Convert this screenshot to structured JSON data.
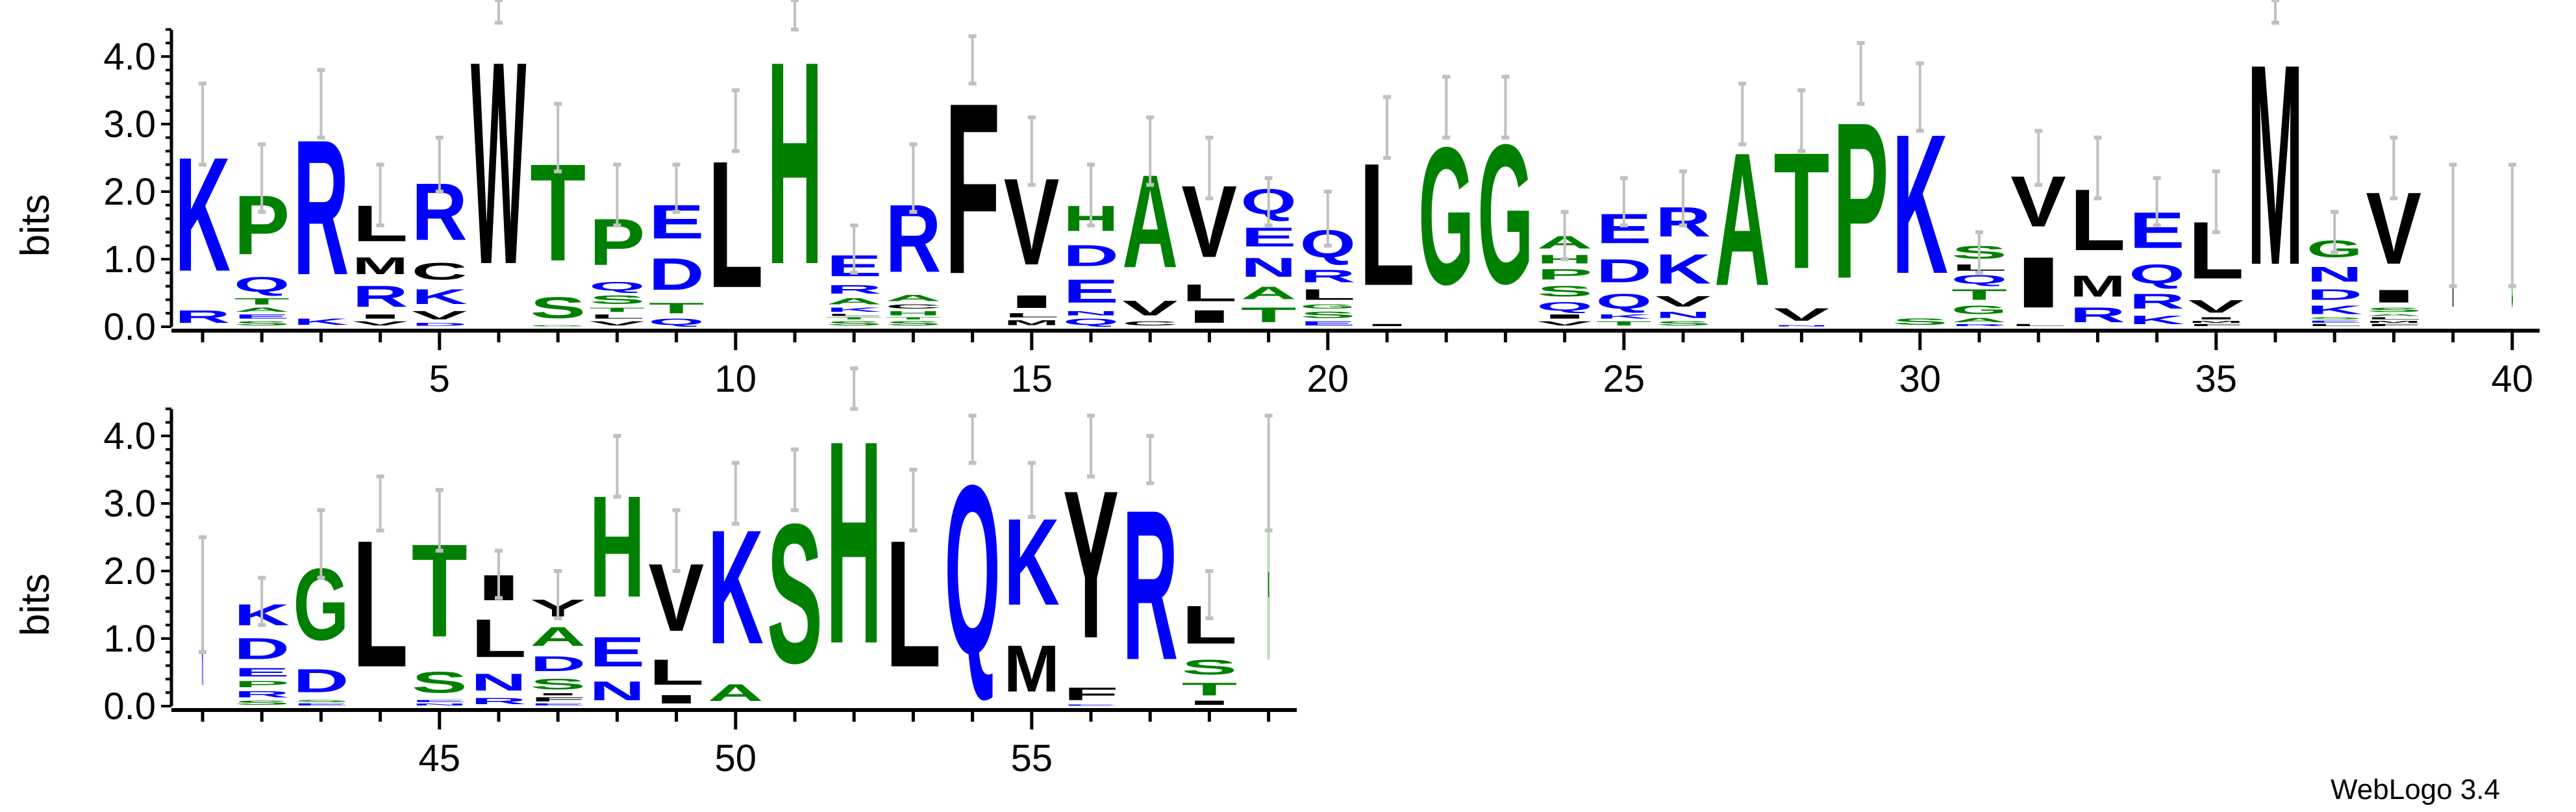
{
  "chart_data": {
    "type": "sequence-logo",
    "ylabel": "bits",
    "ylim": [
      0,
      4.4
    ],
    "yticks": [
      "0.0",
      "1.0",
      "2.0",
      "3.0",
      "4.0"
    ],
    "xticks_row1": [
      "5",
      "10",
      "15",
      "20",
      "25",
      "30",
      "35",
      "40"
    ],
    "xticks_row2": [
      "45",
      "50",
      "55"
    ],
    "rows": [
      [
        1,
        40
      ],
      [
        41,
        59
      ]
    ],
    "colors": {
      "blue": "#0000FF",
      "green": "#008000",
      "black": "#000000",
      "errorbar": "#C0C0C0"
    },
    "letter_colors": {
      "K": "blue",
      "R": "blue",
      "H": "green",
      "D": "blue",
      "E": "blue",
      "N": "blue",
      "Q": "blue",
      "S": "green",
      "T": "green",
      "G": "green",
      "P": "green",
      "A": "green",
      "Y": "black",
      "C": "black",
      "W": "black",
      "F": "black",
      "L": "black",
      "I": "black",
      "M": "black",
      "V": "black"
    },
    "positions": [
      {
        "pos": 1,
        "stack": [
          [
            "R",
            0.3
          ],
          [
            "K",
            2.7
          ]
        ],
        "err": [
          2.4,
          3.6
        ]
      },
      {
        "pos": 2,
        "stack": [
          [
            "S",
            0.1
          ],
          [
            "E",
            0.1
          ],
          [
            "A",
            0.1
          ],
          [
            "T",
            0.15
          ],
          [
            "Q",
            0.35
          ],
          [
            "P",
            1.4
          ]
        ],
        "err": [
          1.7,
          2.7
        ]
      },
      {
        "pos": 3,
        "stack": [
          [
            "K",
            0.15
          ],
          [
            "R",
            3.2
          ]
        ],
        "err": [
          2.8,
          3.8
        ]
      },
      {
        "pos": 4,
        "stack": [
          [
            "V",
            0.1
          ],
          [
            "I",
            0.1
          ],
          [
            "R",
            0.5
          ],
          [
            "M",
            0.4
          ],
          [
            "L",
            0.85
          ]
        ],
        "err": [
          1.5,
          2.4
        ]
      },
      {
        "pos": 5,
        "stack": [
          [
            "D",
            0.07
          ],
          [
            "V",
            0.2
          ],
          [
            "K",
            0.35
          ],
          [
            "C",
            0.4
          ],
          [
            "R",
            1.35
          ]
        ],
        "err": [
          2.0,
          2.8
        ]
      },
      {
        "pos": 6,
        "stack": [
          [
            "W",
            4.8
          ]
        ],
        "err": [
          4.5,
          5.0
        ]
      },
      {
        "pos": 7,
        "stack": [
          [
            "G",
            0.03
          ],
          [
            "S",
            0.5
          ],
          [
            "T",
            2.3
          ]
        ],
        "err": [
          2.3,
          3.3
        ]
      },
      {
        "pos": 8,
        "stack": [
          [
            "V",
            0.1
          ],
          [
            "L",
            0.1
          ],
          [
            "T",
            0.1
          ],
          [
            "S",
            0.2
          ],
          [
            "Q",
            0.2
          ],
          [
            "P",
            1.1
          ]
        ],
        "err": [
          1.5,
          2.4
        ]
      },
      {
        "pos": 9,
        "stack": [
          [
            "Q",
            0.15
          ],
          [
            "T",
            0.25
          ],
          [
            "D",
            0.75
          ],
          [
            "E",
            0.8
          ]
        ],
        "err": [
          1.7,
          2.4
        ]
      },
      {
        "pos": 10,
        "stack": [
          [
            "L",
            3.0
          ]
        ],
        "err": [
          2.6,
          3.5
        ]
      },
      {
        "pos": 11,
        "stack": [
          [
            "H",
            4.8
          ]
        ],
        "err": [
          4.4,
          5.0
        ]
      },
      {
        "pos": 12,
        "stack": [
          [
            "S",
            0.1
          ],
          [
            "T",
            0.05
          ],
          [
            "L",
            0.05
          ],
          [
            "K",
            0.1
          ],
          [
            "A",
            0.15
          ],
          [
            "R",
            0.2
          ],
          [
            "E",
            0.5
          ]
        ],
        "err": [
          0.8,
          1.5
        ]
      },
      {
        "pos": 13,
        "stack": [
          [
            "S",
            0.1
          ],
          [
            "T",
            0.05
          ],
          [
            "H",
            0.1
          ],
          [
            "C",
            0.1
          ],
          [
            "A",
            0.15
          ],
          [
            "R",
            1.6
          ]
        ],
        "err": [
          1.7,
          2.7
        ]
      },
      {
        "pos": 14,
        "stack": [
          [
            "F",
            4.05
          ]
        ],
        "err": [
          3.6,
          4.3
        ]
      },
      {
        "pos": 15,
        "stack": [
          [
            "M",
            0.12
          ],
          [
            "L",
            0.1
          ],
          [
            "I",
            0.3
          ],
          [
            "V",
            2.05
          ]
        ],
        "err": [
          2.1,
          3.1
        ]
      },
      {
        "pos": 16,
        "stack": [
          [
            "Q",
            0.15
          ],
          [
            "N",
            0.1
          ],
          [
            "E",
            0.55
          ],
          [
            "D",
            0.5
          ],
          [
            "H",
            0.6
          ]
        ],
        "err": [
          1.5,
          2.4
        ]
      },
      {
        "pos": 17,
        "stack": [
          [
            "C",
            0.1
          ],
          [
            "V",
            0.35
          ],
          [
            "A",
            2.2
          ]
        ],
        "err": [
          2.1,
          3.1
        ]
      },
      {
        "pos": 18,
        "stack": [
          [
            "I",
            0.3
          ],
          [
            "L",
            0.4
          ],
          [
            "V",
            1.7
          ]
        ],
        "err": [
          1.9,
          2.8
        ]
      },
      {
        "pos": 19,
        "stack": [
          [
            "T",
            0.35
          ],
          [
            "A",
            0.3
          ],
          [
            "N",
            0.45
          ],
          [
            "E",
            0.45
          ],
          [
            "Q",
            0.6
          ]
        ],
        "err": [
          1.5,
          2.2
        ]
      },
      {
        "pos": 20,
        "stack": [
          [
            "E",
            0.1
          ],
          [
            "S",
            0.15
          ],
          [
            "G",
            0.1
          ],
          [
            "L",
            0.25
          ],
          [
            "R",
            0.3
          ],
          [
            "Q",
            0.65
          ]
        ],
        "err": [
          1.2,
          2.0
        ]
      },
      {
        "pos": 21,
        "stack": [
          [
            "I",
            0.05
          ],
          [
            "L",
            2.9
          ]
        ],
        "err": [
          2.5,
          3.4
        ]
      },
      {
        "pos": 22,
        "stack": [
          [
            "G",
            3.25
          ]
        ],
        "err": [
          2.8,
          3.7
        ]
      },
      {
        "pos": 23,
        "stack": [
          [
            "G",
            3.3
          ]
        ],
        "err": [
          2.8,
          3.7
        ]
      },
      {
        "pos": 24,
        "stack": [
          [
            "V",
            0.1
          ],
          [
            "I",
            0.1
          ],
          [
            "Q",
            0.2
          ],
          [
            "S",
            0.25
          ],
          [
            "P",
            0.25
          ],
          [
            "H",
            0.2
          ],
          [
            "A",
            0.3
          ]
        ],
        "err": [
          1.0,
          1.7
        ]
      },
      {
        "pos": 25,
        "stack": [
          [
            "T",
            0.1
          ],
          [
            "K",
            0.1
          ],
          [
            "Q",
            0.35
          ],
          [
            "D",
            0.55
          ],
          [
            "E",
            0.7
          ]
        ],
        "err": [
          1.5,
          2.2
        ]
      },
      {
        "pos": 26,
        "stack": [
          [
            "S",
            0.1
          ],
          [
            "N",
            0.15
          ],
          [
            "V",
            0.25
          ],
          [
            "K",
            0.7
          ],
          [
            "R",
            0.7
          ]
        ],
        "err": [
          1.5,
          2.3
        ]
      },
      {
        "pos": 27,
        "stack": [
          [
            "A",
            3.15
          ]
        ],
        "err": [
          2.7,
          3.6
        ]
      },
      {
        "pos": 28,
        "stack": [
          [
            "N",
            0.03
          ],
          [
            "V",
            0.3
          ],
          [
            "T",
            2.75
          ]
        ],
        "err": [
          2.6,
          3.5
        ]
      },
      {
        "pos": 29,
        "stack": [
          [
            "P",
            3.7
          ]
        ],
        "err": [
          3.3,
          4.2
        ]
      },
      {
        "pos": 30,
        "stack": [
          [
            "S",
            0.15
          ],
          [
            "K",
            3.3
          ]
        ],
        "err": [
          2.9,
          3.9
        ]
      },
      {
        "pos": 31,
        "stack": [
          [
            "R",
            0.05
          ],
          [
            "A",
            0.1
          ],
          [
            "G",
            0.2
          ],
          [
            "T",
            0.25
          ],
          [
            "Q",
            0.2
          ],
          [
            "L",
            0.15
          ],
          [
            "S",
            0.3
          ]
        ],
        "err": [
          0.8,
          1.4
        ]
      },
      {
        "pos": 32,
        "stack": [
          [
            "L",
            0.05
          ],
          [
            "I",
            1.2
          ],
          [
            "V",
            1.2
          ]
        ],
        "err": [
          2.1,
          2.9
        ]
      },
      {
        "pos": 33,
        "stack": [
          [
            "R",
            0.35
          ],
          [
            "M",
            0.5
          ],
          [
            "L",
            1.45
          ]
        ],
        "err": [
          1.9,
          2.8
        ]
      },
      {
        "pos": 34,
        "stack": [
          [
            "K",
            0.2
          ],
          [
            "R",
            0.35
          ],
          [
            "Q",
            0.45
          ],
          [
            "E",
            0.85
          ]
        ],
        "err": [
          1.5,
          2.2
        ]
      },
      {
        "pos": 35,
        "stack": [
          [
            "F",
            0.05
          ],
          [
            "M",
            0.05
          ],
          [
            "I",
            0.05
          ],
          [
            "V",
            0.3
          ],
          [
            "L",
            1.35
          ]
        ],
        "err": [
          1.4,
          2.3
        ]
      },
      {
        "pos": 36,
        "stack": [
          [
            "M",
            4.75
          ]
        ],
        "err": [
          4.5,
          5.0
        ]
      },
      {
        "pos": 37,
        "stack": [
          [
            "L",
            0.05
          ],
          [
            "E",
            0.05
          ],
          [
            "S",
            0.05
          ],
          [
            "K",
            0.2
          ],
          [
            "D",
            0.25
          ],
          [
            "N",
            0.35
          ],
          [
            "G",
            0.4
          ]
        ],
        "err": [
          1.1,
          1.7
        ]
      },
      {
        "pos": 38,
        "stack": [
          [
            "F",
            0.05
          ],
          [
            "M",
            0.05
          ],
          [
            "L",
            0.05
          ],
          [
            "A",
            0.05
          ],
          [
            "S",
            0.1
          ],
          [
            "I",
            0.3
          ],
          [
            "V",
            1.7
          ]
        ],
        "err": [
          1.9,
          2.8
        ]
      },
      {
        "pos": 39,
        "stack": [
          [
            "I",
            1.5
          ]
        ],
        "err": [
          0.6,
          2.4
        ],
        "weight": 0.03
      },
      {
        "pos": 40,
        "stack": [
          [
            "G",
            1.5
          ]
        ],
        "err": [
          0.6,
          2.4
        ],
        "weight": 0.03
      },
      {
        "pos": 41,
        "stack": [
          [
            "K",
            1.6
          ]
        ],
        "err": [
          0.8,
          2.5
        ],
        "weight": 0.03
      },
      {
        "pos": 42,
        "stack": [
          [
            "S",
            0.1
          ],
          [
            "R",
            0.15
          ],
          [
            "P",
            0.15
          ],
          [
            "E",
            0.2
          ],
          [
            "D",
            0.5
          ],
          [
            "K",
            0.5
          ]
        ],
        "err": [
          1.2,
          1.9
        ]
      },
      {
        "pos": 43,
        "stack": [
          [
            "E",
            0.05
          ],
          [
            "S",
            0.05
          ],
          [
            "D",
            0.55
          ],
          [
            "G",
            1.7
          ]
        ],
        "err": [
          1.9,
          2.9
        ]
      },
      {
        "pos": 44,
        "stack": [
          [
            "L",
            3.0
          ]
        ],
        "err": [
          2.6,
          3.4
        ]
      },
      {
        "pos": 45,
        "stack": [
          [
            "N",
            0.05
          ],
          [
            "E",
            0.05
          ],
          [
            "S",
            0.5
          ],
          [
            "T",
            2.2
          ]
        ],
        "err": [
          2.3,
          3.2
        ]
      },
      {
        "pos": 46,
        "stack": [
          [
            "R",
            0.15
          ],
          [
            "N",
            0.4
          ],
          [
            "L",
            0.9
          ],
          [
            "I",
            0.6
          ]
        ],
        "err": [
          1.6,
          2.3
        ]
      },
      {
        "pos": 47,
        "stack": [
          [
            "E",
            0.05
          ],
          [
            "F",
            0.1
          ],
          [
            "I",
            0.05
          ],
          [
            "S",
            0.25
          ],
          [
            "D",
            0.35
          ],
          [
            "A",
            0.45
          ],
          [
            "Y",
            0.4
          ]
        ],
        "err": [
          1.3,
          2.0
        ]
      },
      {
        "pos": 48,
        "stack": [
          [
            "N",
            0.45
          ],
          [
            "E",
            0.7
          ],
          [
            "H",
            2.4
          ]
        ],
        "err": [
          3.1,
          4.0
        ]
      },
      {
        "pos": 49,
        "stack": [
          [
            "I",
            0.2
          ],
          [
            "L",
            0.6
          ],
          [
            "V",
            1.6
          ]
        ],
        "err": [
          2.0,
          2.9
        ]
      },
      {
        "pos": 50,
        "stack": [
          [
            "A",
            0.4
          ],
          [
            "K",
            2.7
          ]
        ],
        "err": [
          2.7,
          3.6
        ]
      },
      {
        "pos": 51,
        "stack": [
          [
            "S",
            3.3
          ]
        ],
        "err": [
          2.9,
          3.8
        ]
      },
      {
        "pos": 52,
        "stack": [
          [
            "H",
            4.8
          ]
        ],
        "err": [
          4.4,
          5.0
        ]
      },
      {
        "pos": 53,
        "stack": [
          [
            "L",
            3.0
          ]
        ],
        "err": [
          2.6,
          3.5
        ]
      },
      {
        "pos": 54,
        "stack": [
          [
            "Q",
            4.0
          ]
        ],
        "err": [
          3.6,
          4.3
        ]
      },
      {
        "pos": 55,
        "stack": [
          [
            "M",
            1.1
          ],
          [
            "K",
            2.05
          ]
        ],
        "err": [
          2.8,
          3.6
        ]
      },
      {
        "pos": 56,
        "stack": [
          [
            "E",
            0.03
          ],
          [
            "F",
            0.3
          ],
          [
            "Y",
            3.5
          ]
        ],
        "err": [
          3.4,
          4.3
        ]
      },
      {
        "pos": 57,
        "stack": [
          [
            "R",
            3.55
          ]
        ],
        "err": [
          3.3,
          4.0
        ]
      },
      {
        "pos": 58,
        "stack": [
          [
            "I",
            0.1
          ],
          [
            "T",
            0.3
          ],
          [
            "S",
            0.35
          ],
          [
            "L",
            0.9
          ]
        ],
        "err": [
          1.3,
          2.0
        ]
      },
      {
        "pos": 59,
        "stack": [
          [
            "H",
            3.5
          ]
        ],
        "err": [
          2.6,
          4.3
        ],
        "weight": 0.03
      }
    ]
  },
  "footer": "WebLogo 3.4"
}
